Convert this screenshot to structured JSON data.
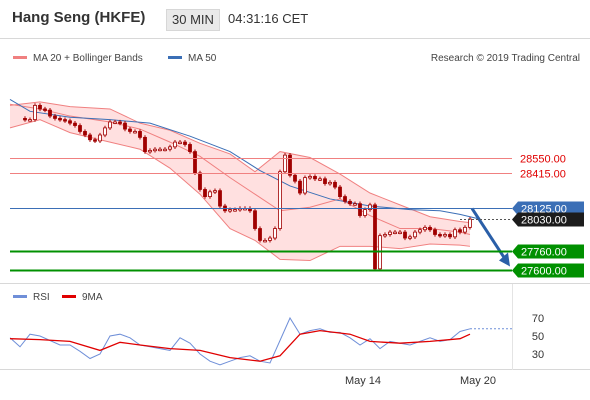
{
  "header": {
    "title": "Hang Seng (HKFE)",
    "timeframe": "30 MIN",
    "time": "04:31:16 CET"
  },
  "colors": {
    "bollinger": "#f08080",
    "bollinger_band_fill": "#ffd6d6",
    "ma50": "#3b6fb6",
    "candle": "#a00000",
    "resistance": "#f08080",
    "pivot": "#3b6fb6",
    "support": "#009000",
    "arrow": "#2a5fa8",
    "rsi": "#6f8fd8",
    "rsi_ma": "#e00000"
  },
  "chart_data": [
    {
      "type": "candlestick",
      "legend": [
        "MA 20 + Bollinger Bands",
        "MA 50"
      ],
      "watermark": "Research © 2019 Trading Central",
      "x_ticks": [
        "May 14",
        "May 20"
      ],
      "levels": [
        {
          "value": 28550,
          "label": "28550.00",
          "kind": "resistance"
        },
        {
          "value": 28415,
          "label": "28415.00",
          "kind": "resistance"
        },
        {
          "value": 28125,
          "label": "28125.00",
          "kind": "pivot"
        },
        {
          "value": 28030,
          "label": "28030.00",
          "kind": "last"
        },
        {
          "value": 27760,
          "label": "27760.00",
          "kind": "support"
        },
        {
          "value": 27600,
          "label": "27600.00",
          "kind": "support"
        }
      ],
      "ma50": [
        [
          0,
          29040
        ],
        [
          20,
          28940
        ],
        [
          60,
          28890
        ],
        [
          100,
          28870
        ],
        [
          140,
          28840
        ],
        [
          180,
          28730
        ],
        [
          220,
          28600
        ],
        [
          250,
          28440
        ],
        [
          280,
          28310
        ],
        [
          320,
          28200
        ],
        [
          360,
          28140
        ],
        [
          400,
          28110
        ],
        [
          430,
          28100
        ],
        [
          450,
          28070
        ],
        [
          470,
          28030
        ]
      ],
      "bb_mid": [
        [
          0,
          29000
        ],
        [
          30,
          28960
        ],
        [
          60,
          28900
        ],
        [
          100,
          28850
        ],
        [
          130,
          28790
        ],
        [
          160,
          28680
        ],
        [
          190,
          28560
        ],
        [
          220,
          28380
        ],
        [
          245,
          28240
        ],
        [
          270,
          28100
        ],
        [
          300,
          28130
        ],
        [
          330,
          28200
        ],
        [
          360,
          28060
        ],
        [
          390,
          27950
        ],
        [
          420,
          27950
        ],
        [
          450,
          27920
        ],
        [
          460,
          27900
        ]
      ],
      "bb_upper": [
        [
          0,
          28990
        ],
        [
          30,
          29020
        ],
        [
          60,
          28980
        ],
        [
          100,
          28960
        ],
        [
          130,
          28840
        ],
        [
          160,
          28780
        ],
        [
          190,
          28670
        ],
        [
          220,
          28580
        ],
        [
          245,
          28430
        ],
        [
          270,
          28600
        ],
        [
          300,
          28550
        ],
        [
          330,
          28410
        ],
        [
          360,
          28250
        ],
        [
          390,
          28150
        ],
        [
          420,
          28050
        ],
        [
          450,
          28010
        ],
        [
          460,
          28000
        ]
      ],
      "bb_lower": [
        [
          0,
          28800
        ],
        [
          30,
          28870
        ],
        [
          60,
          28760
        ],
        [
          100,
          28680
        ],
        [
          130,
          28620
        ],
        [
          160,
          28460
        ],
        [
          190,
          28240
        ],
        [
          220,
          27950
        ],
        [
          245,
          27850
        ],
        [
          270,
          27690
        ],
        [
          300,
          27680
        ],
        [
          330,
          27800
        ],
        [
          360,
          27800
        ],
        [
          390,
          27780
        ],
        [
          420,
          27820
        ],
        [
          450,
          27810
        ],
        [
          460,
          27800
        ]
      ],
      "price": [
        [
          10,
          28880
        ],
        [
          15,
          28870
        ],
        [
          20,
          28870
        ],
        [
          25,
          28990
        ],
        [
          30,
          28960
        ],
        [
          35,
          28950
        ],
        [
          40,
          28900
        ],
        [
          45,
          28880
        ],
        [
          50,
          28870
        ],
        [
          55,
          28860
        ],
        [
          60,
          28840
        ],
        [
          65,
          28820
        ],
        [
          70,
          28770
        ],
        [
          75,
          28740
        ],
        [
          80,
          28700
        ],
        [
          85,
          28690
        ],
        [
          90,
          28740
        ],
        [
          95,
          28800
        ],
        [
          100,
          28850
        ],
        [
          105,
          28850
        ],
        [
          110,
          28840
        ],
        [
          115,
          28790
        ],
        [
          120,
          28770
        ],
        [
          125,
          28770
        ],
        [
          130,
          28720
        ],
        [
          135,
          28600
        ],
        [
          140,
          28610
        ],
        [
          145,
          28620
        ],
        [
          150,
          28620
        ],
        [
          155,
          28620
        ],
        [
          160,
          28640
        ],
        [
          165,
          28680
        ],
        [
          170,
          28680
        ],
        [
          175,
          28660
        ],
        [
          180,
          28600
        ],
        [
          185,
          28420
        ],
        [
          190,
          28280
        ],
        [
          195,
          28220
        ],
        [
          200,
          28260
        ],
        [
          205,
          28270
        ],
        [
          210,
          28140
        ],
        [
          215,
          28100
        ],
        [
          220,
          28110
        ],
        [
          225,
          28110
        ],
        [
          230,
          28120
        ],
        [
          235,
          28120
        ],
        [
          240,
          28100
        ],
        [
          245,
          27950
        ],
        [
          250,
          27850
        ],
        [
          255,
          27850
        ],
        [
          260,
          27870
        ],
        [
          265,
          27950
        ],
        [
          270,
          28430
        ],
        [
          275,
          28570
        ],
        [
          280,
          28400
        ],
        [
          285,
          28350
        ],
        [
          290,
          28250
        ],
        [
          295,
          28380
        ],
        [
          300,
          28390
        ],
        [
          305,
          28370
        ],
        [
          310,
          28370
        ],
        [
          315,
          28330
        ],
        [
          320,
          28340
        ],
        [
          325,
          28300
        ],
        [
          330,
          28220
        ],
        [
          335,
          28180
        ],
        [
          340,
          28160
        ],
        [
          345,
          28160
        ],
        [
          350,
          28060
        ],
        [
          355,
          28110
        ],
        [
          360,
          28150
        ],
        [
          365,
          27610
        ],
        [
          370,
          27890
        ],
        [
          375,
          27900
        ],
        [
          380,
          27920
        ],
        [
          385,
          27920
        ],
        [
          390,
          27920
        ],
        [
          395,
          27870
        ],
        [
          400,
          27880
        ],
        [
          405,
          27920
        ],
        [
          410,
          27940
        ],
        [
          415,
          27960
        ],
        [
          420,
          27940
        ],
        [
          425,
          27900
        ],
        [
          430,
          27890
        ],
        [
          435,
          27900
        ],
        [
          440,
          27880
        ],
        [
          445,
          27940
        ],
        [
          450,
          27920
        ],
        [
          455,
          27960
        ],
        [
          460,
          28030
        ]
      ],
      "forecast_arrow": [
        [
          462,
          28120
        ],
        [
          500,
          27630
        ]
      ]
    },
    {
      "type": "line",
      "legend": [
        "RSI",
        "9MA"
      ],
      "y_ticks": [
        70,
        50,
        30
      ],
      "y_range": [
        15,
        80
      ],
      "rsi": [
        [
          0,
          48
        ],
        [
          10,
          38
        ],
        [
          20,
          52
        ],
        [
          30,
          50
        ],
        [
          40,
          45
        ],
        [
          50,
          40
        ],
        [
          60,
          40
        ],
        [
          70,
          33
        ],
        [
          80,
          25
        ],
        [
          90,
          30
        ],
        [
          100,
          50
        ],
        [
          110,
          52
        ],
        [
          120,
          48
        ],
        [
          130,
          40
        ],
        [
          140,
          38
        ],
        [
          150,
          36
        ],
        [
          160,
          34
        ],
        [
          170,
          48
        ],
        [
          180,
          42
        ],
        [
          190,
          30
        ],
        [
          200,
          22
        ],
        [
          210,
          18
        ],
        [
          220,
          22
        ],
        [
          230,
          26
        ],
        [
          240,
          28
        ],
        [
          250,
          22
        ],
        [
          260,
          20
        ],
        [
          270,
          45
        ],
        [
          280,
          70
        ],
        [
          290,
          52
        ],
        [
          300,
          56
        ],
        [
          310,
          58
        ],
        [
          320,
          54
        ],
        [
          330,
          54
        ],
        [
          340,
          48
        ],
        [
          350,
          40
        ],
        [
          360,
          47
        ],
        [
          370,
          36
        ],
        [
          380,
          44
        ],
        [
          390,
          42
        ],
        [
          400,
          40
        ],
        [
          410,
          44
        ],
        [
          420,
          48
        ],
        [
          430,
          44
        ],
        [
          440,
          46
        ],
        [
          450,
          55
        ],
        [
          460,
          58
        ]
      ],
      "rsi_ma": [
        [
          0,
          47
        ],
        [
          30,
          46
        ],
        [
          60,
          44
        ],
        [
          90,
          34
        ],
        [
          110,
          43
        ],
        [
          130,
          40
        ],
        [
          160,
          36
        ],
        [
          190,
          34
        ],
        [
          220,
          26
        ],
        [
          250,
          22
        ],
        [
          270,
          28
        ],
        [
          290,
          52
        ],
        [
          310,
          56
        ],
        [
          340,
          52
        ],
        [
          360,
          44
        ],
        [
          390,
          42
        ],
        [
          420,
          44
        ],
        [
          450,
          47
        ],
        [
          460,
          52
        ]
      ]
    }
  ]
}
